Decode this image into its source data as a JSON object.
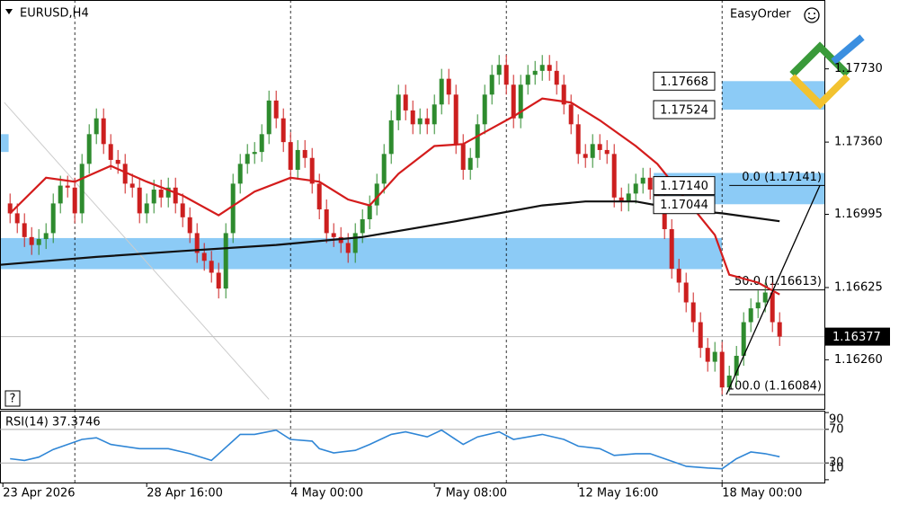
{
  "chart_data": [
    {
      "type": "candlestick",
      "title": "EURUSD,H4",
      "tool_label": "EasyOrder",
      "help_label": "?",
      "xlim": [
        -1.4,
        113.35
      ],
      "ylim": [
        1.16012,
        1.18078
      ],
      "xticks": [
        {
          "value": -1,
          "label": "23 Apr 2026"
        },
        {
          "value": 19,
          "label": "28 Apr 16:00"
        },
        {
          "value": 39,
          "label": "4 May 00:00"
        },
        {
          "value": 59,
          "label": "7 May 08:00"
        },
        {
          "value": 79,
          "label": "12 May 16:00"
        },
        {
          "value": 99,
          "label": "18 May 00:00"
        }
      ],
      "separators": [
        9,
        39,
        69,
        99
      ],
      "yticks": [
        {
          "value": 1.1773,
          "label": "1.17730"
        },
        {
          "value": 1.1736,
          "label": "1.17360"
        },
        {
          "value": 1.16995,
          "label": "1.16995"
        },
        {
          "value": 1.16625,
          "label": "1.16625"
        },
        {
          "value": 1.1626,
          "label": "1.16260"
        }
      ],
      "up_color": "#2e8b2e",
      "down_color": "#cc1f1f",
      "zone_color": "#8ccbf6",
      "open": [
        1.1705,
        1.17,
        1.1695,
        1.1688,
        1.1684,
        1.1687,
        1.169,
        1.1705,
        1.1714,
        1.1713,
        1.17,
        1.1725,
        1.174,
        1.1748,
        1.1735,
        1.1727,
        1.1725,
        1.1715,
        1.1713,
        1.17,
        1.1705,
        1.1712,
        1.1708,
        1.1713,
        1.1705,
        1.1698,
        1.169,
        1.168,
        1.1676,
        1.167,
        1.1662,
        1.169,
        1.1715,
        1.1725,
        1.173,
        1.1731,
        1.174,
        1.1757,
        1.1748,
        1.1736,
        1.1722,
        1.1732,
        1.1728,
        1.1715,
        1.1702,
        1.169,
        1.1688,
        1.1685,
        1.168,
        1.169,
        1.1697,
        1.1704,
        1.1715,
        1.173,
        1.1747,
        1.176,
        1.1752,
        1.1745,
        1.1748,
        1.1745,
        1.1755,
        1.1768,
        1.176,
        1.1735,
        1.1722,
        1.1728,
        1.1745,
        1.176,
        1.177,
        1.1775,
        1.1765,
        1.1748,
        1.1765,
        1.177,
        1.1772,
        1.1775,
        1.1772,
        1.1765,
        1.1755,
        1.1745,
        1.173,
        1.1728,
        1.1735,
        1.1732,
        1.173,
        1.1708,
        1.1706,
        1.171,
        1.1715,
        1.1718,
        1.1712,
        1.1705,
        1.1692,
        1.1672,
        1.1665,
        1.1655,
        1.1645,
        1.1632,
        1.1625,
        1.163,
        1.1612,
        1.1618,
        1.1628,
        1.1645,
        1.1652,
        1.1655,
        1.166,
        1.1645
      ],
      "high": [
        1.171,
        1.1705,
        1.17,
        1.1693,
        1.1692,
        1.1695,
        1.171,
        1.1719,
        1.1719,
        1.1718,
        1.173,
        1.1745,
        1.1753,
        1.1753,
        1.174,
        1.1732,
        1.173,
        1.172,
        1.1718,
        1.171,
        1.1717,
        1.1717,
        1.1718,
        1.1718,
        1.171,
        1.1703,
        1.1695,
        1.1685,
        1.1681,
        1.1675,
        1.1695,
        1.172,
        1.173,
        1.1735,
        1.1736,
        1.1745,
        1.1762,
        1.1762,
        1.1753,
        1.1741,
        1.1737,
        1.1737,
        1.1733,
        1.172,
        1.1707,
        1.1695,
        1.1693,
        1.169,
        1.1695,
        1.1702,
        1.1709,
        1.172,
        1.1735,
        1.1752,
        1.1765,
        1.1765,
        1.1757,
        1.1753,
        1.1753,
        1.176,
        1.1773,
        1.1773,
        1.1765,
        1.174,
        1.1733,
        1.175,
        1.1765,
        1.1775,
        1.178,
        1.178,
        1.177,
        1.177,
        1.1775,
        1.1777,
        1.178,
        1.178,
        1.1777,
        1.177,
        1.176,
        1.175,
        1.1735,
        1.174,
        1.174,
        1.1737,
        1.1735,
        1.1713,
        1.1715,
        1.172,
        1.1723,
        1.1723,
        1.1717,
        1.171,
        1.1697,
        1.1677,
        1.167,
        1.166,
        1.165,
        1.1637,
        1.1635,
        1.1635,
        1.1623,
        1.1633,
        1.165,
        1.1657,
        1.1661,
        1.1665,
        1.1665,
        1.165
      ],
      "low": [
        1.1695,
        1.169,
        1.1683,
        1.1679,
        1.1679,
        1.1682,
        1.1685,
        1.17,
        1.1708,
        1.1695,
        1.1695,
        1.172,
        1.1735,
        1.173,
        1.1722,
        1.172,
        1.171,
        1.1708,
        1.1695,
        1.1695,
        1.17,
        1.1703,
        1.1703,
        1.17,
        1.1693,
        1.1685,
        1.1675,
        1.1671,
        1.1665,
        1.1657,
        1.1657,
        1.1685,
        1.171,
        1.172,
        1.1725,
        1.1726,
        1.1735,
        1.1743,
        1.1731,
        1.1717,
        1.1717,
        1.1723,
        1.171,
        1.1697,
        1.1685,
        1.1683,
        1.168,
        1.1675,
        1.1675,
        1.1685,
        1.1692,
        1.1699,
        1.171,
        1.1725,
        1.1742,
        1.1747,
        1.174,
        1.174,
        1.174,
        1.174,
        1.175,
        1.1755,
        1.173,
        1.1717,
        1.1717,
        1.1723,
        1.174,
        1.1755,
        1.1765,
        1.176,
        1.1743,
        1.1743,
        1.176,
        1.1765,
        1.1767,
        1.1767,
        1.176,
        1.175,
        1.174,
        1.1725,
        1.1723,
        1.1723,
        1.1727,
        1.1725,
        1.1703,
        1.1701,
        1.1701,
        1.1705,
        1.171,
        1.1707,
        1.17,
        1.1687,
        1.1667,
        1.166,
        1.165,
        1.164,
        1.1627,
        1.162,
        1.162,
        1.16084,
        1.161,
        1.1613,
        1.1623,
        1.164,
        1.1647,
        1.165,
        1.164,
        1.1633
      ],
      "close": [
        1.17,
        1.1695,
        1.1688,
        1.1684,
        1.1687,
        1.169,
        1.1705,
        1.1714,
        1.1713,
        1.17,
        1.1725,
        1.174,
        1.1748,
        1.1735,
        1.1727,
        1.1725,
        1.1715,
        1.1713,
        1.17,
        1.1705,
        1.1712,
        1.1708,
        1.1713,
        1.1705,
        1.1698,
        1.169,
        1.168,
        1.1676,
        1.167,
        1.1662,
        1.169,
        1.1715,
        1.1725,
        1.173,
        1.1731,
        1.174,
        1.1757,
        1.1748,
        1.1736,
        1.1722,
        1.1732,
        1.1728,
        1.1715,
        1.1702,
        1.169,
        1.1688,
        1.1685,
        1.168,
        1.169,
        1.1697,
        1.1704,
        1.1715,
        1.173,
        1.1747,
        1.176,
        1.1752,
        1.1745,
        1.1748,
        1.1745,
        1.1755,
        1.1768,
        1.176,
        1.1735,
        1.1722,
        1.1728,
        1.1745,
        1.176,
        1.177,
        1.1775,
        1.1765,
        1.1748,
        1.1765,
        1.177,
        1.1772,
        1.1775,
        1.1772,
        1.1765,
        1.1755,
        1.1745,
        1.173,
        1.1728,
        1.1735,
        1.1732,
        1.173,
        1.1708,
        1.1706,
        1.171,
        1.1715,
        1.1718,
        1.1712,
        1.1705,
        1.1692,
        1.1672,
        1.1665,
        1.1655,
        1.1645,
        1.1632,
        1.1625,
        1.163,
        1.1612,
        1.1618,
        1.1628,
        1.1645,
        1.1652,
        1.1655,
        1.166,
        1.1645,
        1.16377
      ],
      "ma": [
        {
          "color": "#d41c1c",
          "x": [
            0,
            5,
            9,
            14,
            19,
            24,
            29,
            34,
            39,
            43,
            47,
            50,
            54,
            59,
            63,
            67,
            70,
            74,
            78,
            82,
            87,
            90,
            94,
            98,
            100,
            104,
            107
          ],
          "values": [
            1.17,
            1.1718,
            1.1716,
            1.1724,
            1.1716,
            1.1709,
            1.1699,
            1.1711,
            1.1718,
            1.1716,
            1.1707,
            1.1704,
            1.172,
            1.1734,
            1.1735,
            1.1743,
            1.1749,
            1.1758,
            1.1756,
            1.1747,
            1.1734,
            1.1725,
            1.1707,
            1.1689,
            1.1669,
            1.1665,
            1.1659
          ]
        },
        {
          "color": "#111111",
          "x": [
            -1.4,
            12,
            24,
            37,
            49,
            62,
            74,
            80,
            87,
            93,
            99,
            107
          ],
          "values": [
            1.1674,
            1.1678,
            1.1681,
            1.1684,
            1.1688,
            1.1696,
            1.1704,
            1.1706,
            1.1706,
            1.1702,
            1.17,
            1.1696
          ]
        }
      ],
      "zones": [
        {
          "start": -1.4,
          "end": -0.2,
          "low": 1.1731,
          "high": 1.174
        },
        {
          "start": -1.4,
          "end": 99,
          "low": 1.16718,
          "high": 1.16875
        },
        {
          "start": 99,
          "end": 113.35,
          "low": 1.17524,
          "high": 1.17668
        },
        {
          "start": 89.5,
          "end": 113.35,
          "low": 1.17046,
          "high": 1.17204
        }
      ],
      "price_labels": [
        {
          "value": 1.17668,
          "label": "1.17668"
        },
        {
          "value": 1.17524,
          "label": "1.17524"
        },
        {
          "value": 1.1714,
          "label": "1.17140"
        },
        {
          "value": 1.17044,
          "label": "1.17044"
        }
      ],
      "fibo": {
        "start": 100,
        "end": 113.35,
        "levels": [
          {
            "value": 1.17141,
            "label": "0.0 (1.17141)"
          },
          {
            "value": 1.16613,
            "label": "50.0 (1.16613)"
          },
          {
            "value": 1.16084,
            "label": "100.0 (1.16084)"
          }
        ]
      },
      "trendline": {
        "x": [
          99.6,
          112.6
        ],
        "values": [
          1.16084,
          1.17141
        ]
      },
      "diagonal": {
        "x": [
          -0.8,
          36
        ],
        "values": [
          1.1756,
          1.1606
        ]
      },
      "current_price": {
        "value": 1.16377,
        "label": "1.16377"
      }
    },
    {
      "type": "line",
      "title": "RSI(14) 37.3746",
      "color": "#2f86d6",
      "xlim": [
        -1.4,
        113.35
      ],
      "ylim": [
        5.6,
        91.2
      ],
      "yticks": [
        90,
        70,
        30,
        10
      ],
      "levels": [
        70,
        30
      ],
      "x": [
        0,
        2,
        4,
        6,
        10,
        12,
        14,
        18,
        22,
        25,
        28,
        32,
        34,
        37,
        39,
        42,
        43,
        45,
        48,
        50,
        53,
        55,
        58,
        60,
        63,
        65,
        68,
        70,
        74,
        77,
        79,
        82,
        84,
        87,
        89,
        92,
        94,
        97,
        99,
        101,
        103,
        105,
        107
      ],
      "values": [
        35,
        33,
        37,
        46,
        58,
        60,
        52,
        47,
        47,
        41,
        33,
        64,
        64,
        69,
        58,
        56,
        47,
        42,
        45,
        52,
        64,
        67,
        61,
        69,
        52,
        61,
        67,
        58,
        64,
        58,
        50,
        47,
        39,
        41,
        41,
        32,
        26,
        24,
        23,
        35,
        43,
        41,
        37.3746
      ]
    }
  ]
}
